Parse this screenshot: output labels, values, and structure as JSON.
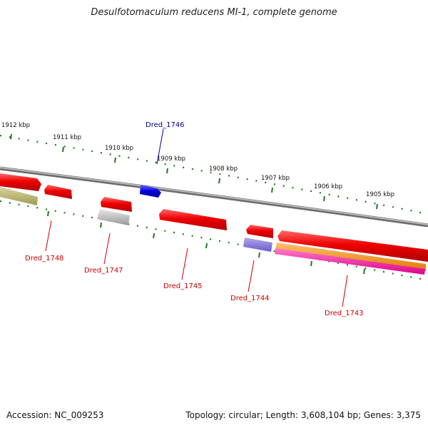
{
  "title": "Desulfotomaculum reducens MI-1, complete genome",
  "footer": {
    "accession": "Accession: NC_009253",
    "info": "Topology: circular; Length: 3,608,104 bp; Genes: 3,375"
  },
  "colors": {
    "forward_cds": "#ee0000",
    "highlight_gene": "#0000cc",
    "label_red": "#cc0000",
    "label_blue": "#000099",
    "tick_green": "#1b7a1b",
    "backbone": "#888888"
  },
  "position_ticks": [
    "1912 kbp",
    "1911 kbp",
    "1910 kbp",
    "1909 kbp",
    "1908 kbp",
    "1907 kbp",
    "1906 kbp",
    "1905 kbp"
  ],
  "gene_labels": [
    {
      "name": "Dred_1746",
      "color": "blue"
    },
    {
      "name": "Dred_1748",
      "color": "red"
    },
    {
      "name": "Dred_1747",
      "color": "red"
    },
    {
      "name": "Dred_1745",
      "color": "red"
    },
    {
      "name": "Dred_1744",
      "color": "red"
    },
    {
      "name": "Dred_1743",
      "color": "red"
    }
  ]
}
